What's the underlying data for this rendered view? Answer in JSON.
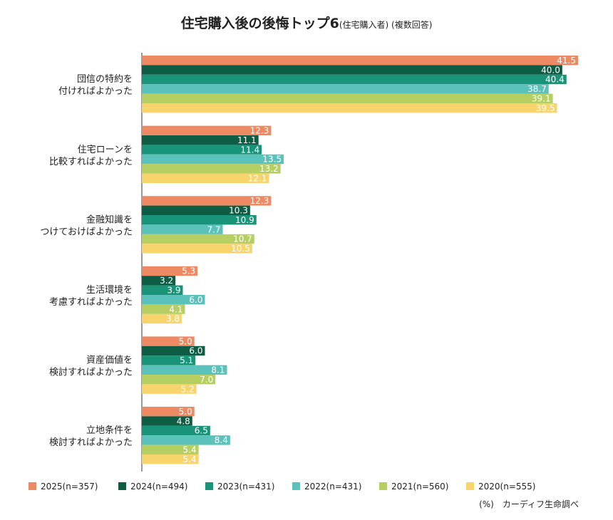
{
  "title": {
    "main": "住宅購入後の後悔トップ6",
    "sub": "(住宅購入者) (複数回答)"
  },
  "source_note": "(%)　カーディフ生命調べ",
  "chart_data": {
    "type": "bar",
    "orientation": "horizontal",
    "categories": [
      [
        "団信の特約を",
        "付ければよかった"
      ],
      [
        "住宅ローンを",
        "比較すればよかった"
      ],
      [
        "金融知識を",
        "つけておけばよかった"
      ],
      [
        "生活環境を",
        "考慮すればよかった"
      ],
      [
        "資産価値を",
        "検討すればよかった"
      ],
      [
        "立地条件を",
        "検討すればよかった"
      ]
    ],
    "series": [
      {
        "name": "2025(n=357)",
        "color": "#ee8a63",
        "values": [
          41.5,
          12.3,
          12.3,
          5.3,
          5.0,
          5.0
        ]
      },
      {
        "name": "2024(n=494)",
        "color": "#0f5c45",
        "values": [
          40.0,
          11.1,
          10.3,
          3.2,
          6.0,
          4.8
        ]
      },
      {
        "name": "2023(n=431)",
        "color": "#1a9478",
        "values": [
          40.4,
          11.4,
          10.9,
          3.9,
          5.1,
          6.5
        ]
      },
      {
        "name": "2022(n=431)",
        "color": "#5bc2bb",
        "values": [
          38.7,
          13.5,
          7.7,
          6.0,
          8.1,
          8.4
        ]
      },
      {
        "name": "2021(n=560)",
        "color": "#b5cf62",
        "values": [
          39.1,
          13.2,
          10.7,
          4.1,
          7.0,
          5.4
        ]
      },
      {
        "name": "2020(n=555)",
        "color": "#f8d46d",
        "values": [
          39.5,
          12.1,
          10.5,
          3.8,
          5.2,
          5.4
        ]
      }
    ],
    "xlim": [
      0,
      41.5
    ],
    "legend_position": "bottom",
    "grid": false
  }
}
